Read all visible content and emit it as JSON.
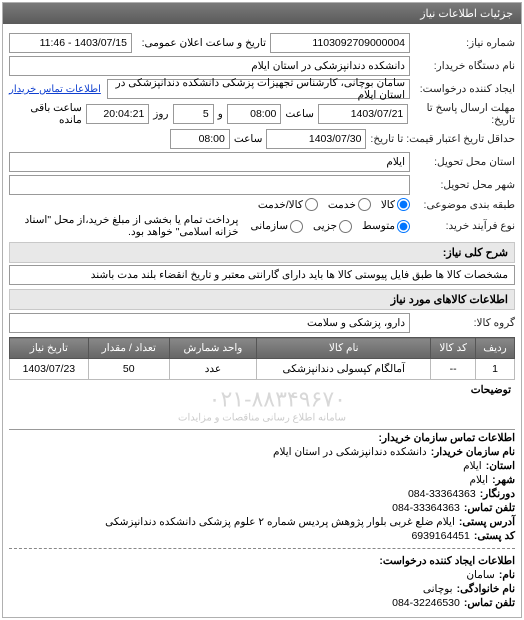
{
  "panel_title": "جزئیات اطلاعات نیاز",
  "fields": {
    "need_number_label": "شماره نیاز:",
    "need_number": "1103092709000004",
    "public_notice_label": "تاریخ و ساعت اعلان عمومی:",
    "public_notice": "1403/07/15 - 11:46",
    "buyer_device_label": "نام دستگاه خریدار:",
    "buyer_device": "دانشکده دندانپزشکی در استان ایلام",
    "request_creator_label": "ایجاد کننده درخواست:",
    "request_creator": "سامان بوچانی، کارشناس تجهیزات پزشکی دانشکده دندانپزشکی در استان ایلام",
    "buyer_contact_link": "اطلاعات تماس خریدار",
    "response_deadline_label": "مهلت ارسال پاسخ تا تاریخ:",
    "response_date": "1403/07/21",
    "time_label": "ساعت",
    "response_time": "08:00",
    "and_label": "و",
    "days_remaining": "5",
    "day_label": "روز",
    "remaining_time": "20:04:21",
    "remaining_time_label": "ساعت باقی مانده",
    "validity_deadline_label": "حداقل تاریخ اعتبار قیمت: تا تاریخ:",
    "validity_date": "1403/07/30",
    "validity_time": "08:00",
    "province_label": "استان محل تحویل:",
    "province": "ایلام",
    "city_label": "شهر محل تحویل:",
    "category_label": "طبقه بندی موضوعی:",
    "purchase_type_label": "نوع فرآیند خرید:",
    "purchase_type_note": "پرداخت تمام یا بخشی از مبلغ خرید،از محل \"اسناد خزانه اسلامی\" خواهد بود.",
    "need_key_label": "شرح کلی نیاز:",
    "need_key_text": "مشخصات کالا ها طبق فایل پیوستی کالا ها باید دارای گارانتی معتبر و تاریخ انقضاء بلند مدت باشند",
    "goods_info_title": "اطلاعات کالاهای مورد نیاز",
    "goods_group_label": "گروه کالا:",
    "goods_group": "دارو، پزشکی و سلامت",
    "notes_label": "توضیحات"
  },
  "radios_category": [
    {
      "label": "کالا",
      "name": "goods",
      "checked": true
    },
    {
      "label": "خدمت",
      "name": "service",
      "checked": false
    },
    {
      "label": "کالا/خدمت",
      "name": "both",
      "checked": false
    }
  ],
  "radios_purchase": [
    {
      "label": "متوسط",
      "name": "medium",
      "checked": true
    },
    {
      "label": "جزیی",
      "name": "minor",
      "checked": false
    },
    {
      "label": "سازمانی",
      "name": "org",
      "checked": false
    }
  ],
  "table": {
    "headers": [
      "ردیف",
      "کد کالا",
      "نام کالا",
      "واحد شمارش",
      "تعداد / مقدار",
      "تاریخ نیاز"
    ],
    "rows": [
      [
        "1",
        "--",
        "آمالگام کپسولی دندانپزشکی",
        "عدد",
        "50",
        "1403/07/23"
      ]
    ]
  },
  "watermark": {
    "main": "۰۲۱-۸۸۳۴۹۶۷۰",
    "sub": "سامانه اطلاع رسانی مناقصات و مزایدات"
  },
  "contact_buyer": {
    "title": "اطلاعات تماس سازمان خریدار:",
    "lines": [
      {
        "label": "نام سازمان خریدار:",
        "value": "دانشکده دندانپزشکی در استان ایلام"
      },
      {
        "label": "استان:",
        "value": "ایلام"
      },
      {
        "label": "شهر:",
        "value": "ایلام"
      },
      {
        "label": "دورنگار:",
        "value": "33364363-084"
      },
      {
        "label": "تلفن تماس:",
        "value": "33364363-084"
      },
      {
        "label": "آدرس پستی:",
        "value": "ایلام ضلع غربی بلوار پژوهش پردیس شماره ۲ علوم پزشکی دانشکده دندانپزشکی"
      },
      {
        "label": "کد پستی:",
        "value": "6939164451"
      }
    ]
  },
  "contact_creator": {
    "title": "اطلاعات ایجاد کننده درخواست:",
    "lines": [
      {
        "label": "نام:",
        "value": "سامان"
      },
      {
        "label": "نام خانوادگی:",
        "value": "بوچانی"
      },
      {
        "label": "تلفن تماس:",
        "value": "32246530-084"
      }
    ]
  },
  "colors": {
    "header_bg": "#6a6a6a",
    "border": "#999999",
    "link": "#1040d0",
    "section_bg": "#e8e8e8"
  }
}
